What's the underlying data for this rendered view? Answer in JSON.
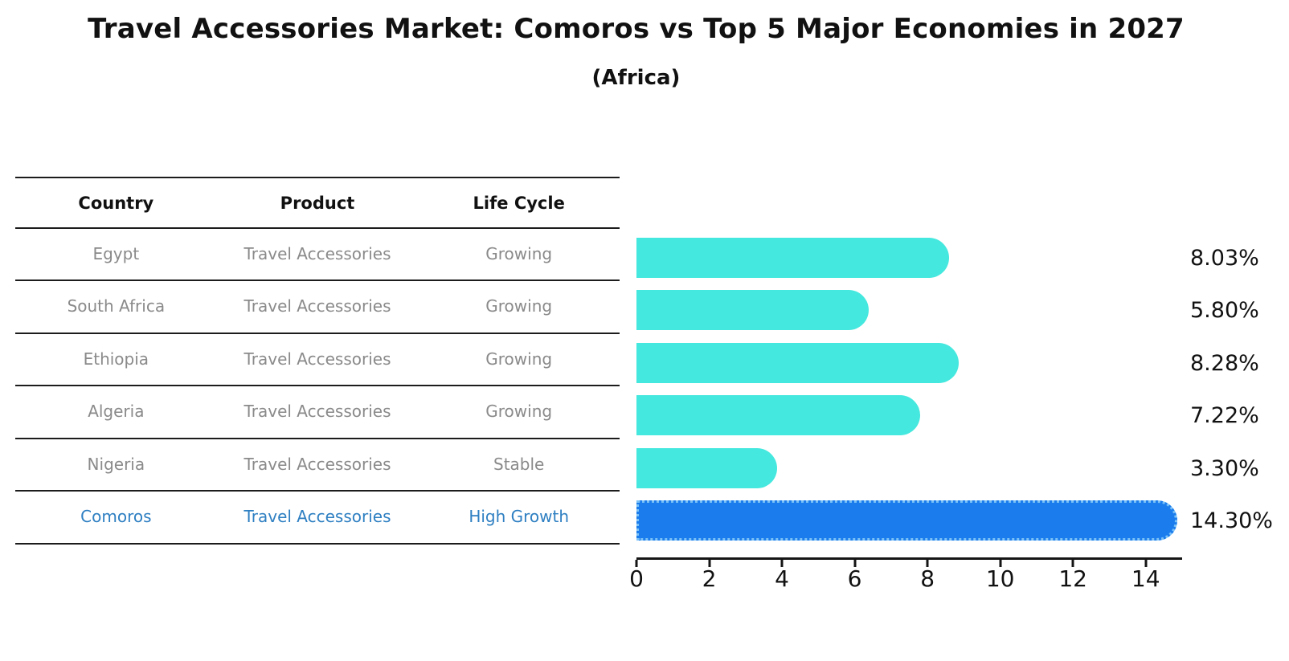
{
  "title": "Travel Accessories Market: Comoros vs Top 5 Major Economies in 2027",
  "subtitle": "(Africa)",
  "table": {
    "headers": [
      "Country",
      "Product",
      "Life Cycle"
    ],
    "rows": [
      {
        "country": "Egypt",
        "product": "Travel Accessories",
        "life_cycle": "Growing"
      },
      {
        "country": "South Africa",
        "product": "Travel Accessories",
        "life_cycle": "Growing"
      },
      {
        "country": "Ethiopia",
        "product": "Travel Accessories",
        "life_cycle": "Growing"
      },
      {
        "country": "Algeria",
        "product": "Travel Accessories",
        "life_cycle": "Growing"
      },
      {
        "country": "Nigeria",
        "product": "Travel Accessories",
        "life_cycle": "Stable"
      },
      {
        "country": "Comoros",
        "product": "Travel Accessories",
        "life_cycle": "High Growth"
      }
    ]
  },
  "chart_data": {
    "type": "bar",
    "orientation": "horizontal",
    "title": "Travel Accessories Market: Comoros vs Top 5 Major Economies in 2027",
    "subtitle": "(Africa)",
    "categories": [
      "Egypt",
      "South Africa",
      "Ethiopia",
      "Algeria",
      "Nigeria",
      "Comoros"
    ],
    "values": [
      8.03,
      5.8,
      8.28,
      7.22,
      3.3,
      14.3
    ],
    "value_labels": [
      "8.03%",
      "5.80%",
      "8.28%",
      "7.22%",
      "3.30%",
      "14.30%"
    ],
    "x_ticks": [
      "0",
      "2",
      "4",
      "6",
      "8",
      "10",
      "12",
      "14"
    ],
    "xlim": [
      0,
      15
    ],
    "grid": false,
    "legend": false,
    "bar_color": "#45e8de",
    "highlight_index": 5,
    "highlight_color": "#1b7ded",
    "highlight_border_color": "#7ac1f7",
    "highlight_text_color": "#2e7fc2",
    "muted_text_color": "#8a8a8a"
  }
}
